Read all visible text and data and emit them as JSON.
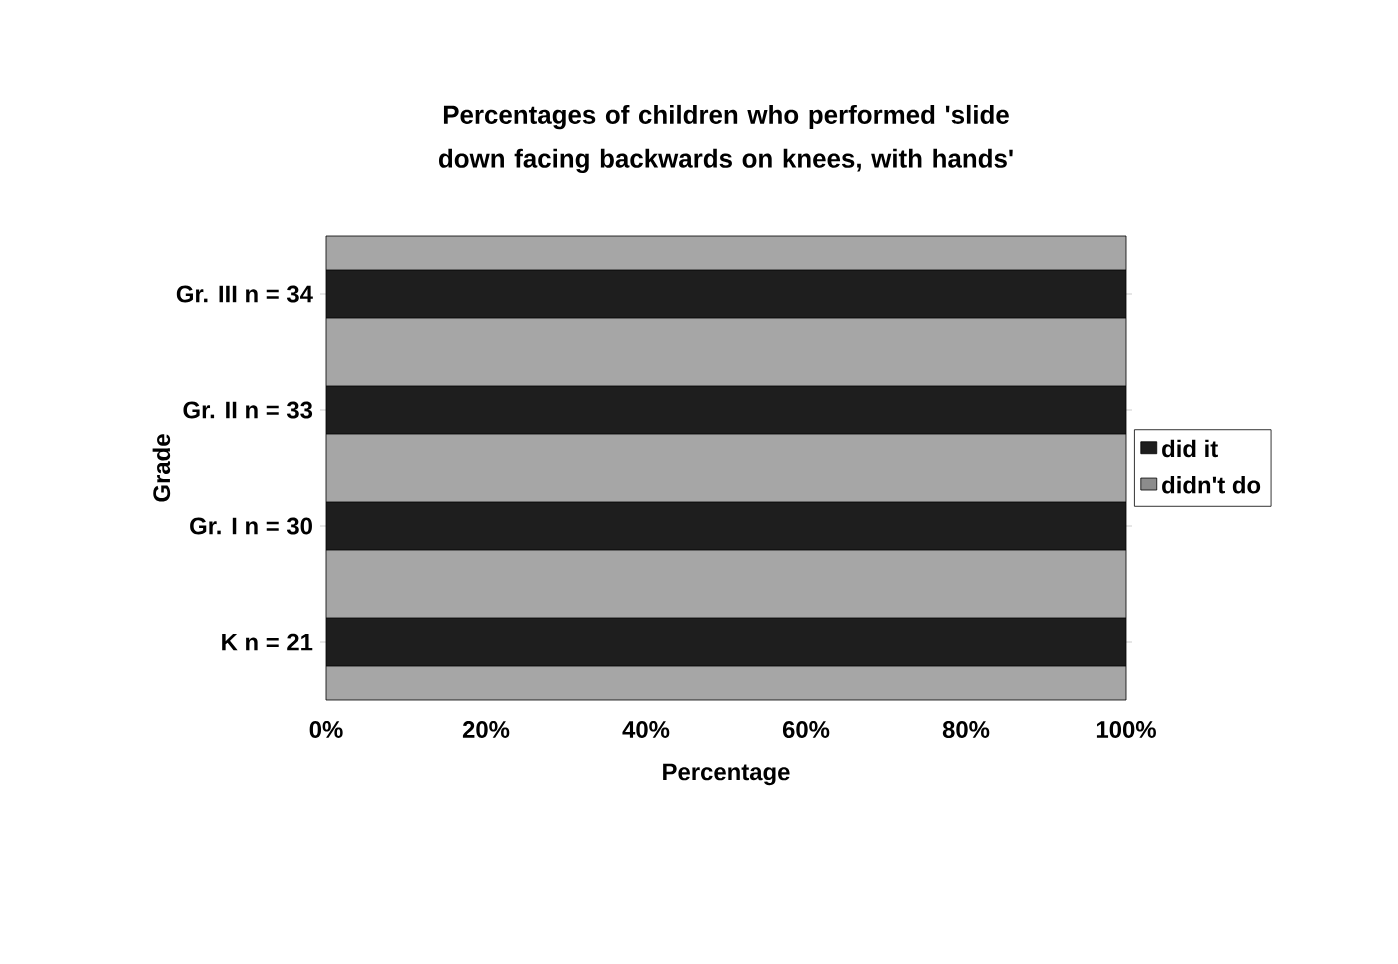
{
  "chart_data": {
    "type": "bar",
    "orientation": "horizontal",
    "stacked": true,
    "title": "Percentages of children who performed 'slide down facing backwards on knees, with hands'",
    "xlabel": "Percentage",
    "ylabel": "Grade",
    "categories": [
      "Gr. III n = 34",
      "Gr. II n = 33",
      "Gr. I n = 30",
      "K n = 21"
    ],
    "series": [
      {
        "name": "did it",
        "color": "#1e1e1e",
        "values": [
          100,
          100,
          100,
          100
        ]
      },
      {
        "name": "didn't do",
        "color": "#8c8c8c",
        "values": [
          0,
          0,
          0,
          0
        ]
      }
    ],
    "xlim": [
      0,
      100
    ],
    "xticks": [
      {
        "value": 0,
        "label": "0%"
      },
      {
        "value": 20,
        "label": "20%"
      },
      {
        "value": 40,
        "label": "40%"
      },
      {
        "value": 60,
        "label": "60%"
      },
      {
        "value": 80,
        "label": "80%"
      },
      {
        "value": 100,
        "label": "100%"
      }
    ],
    "legend": "right"
  }
}
